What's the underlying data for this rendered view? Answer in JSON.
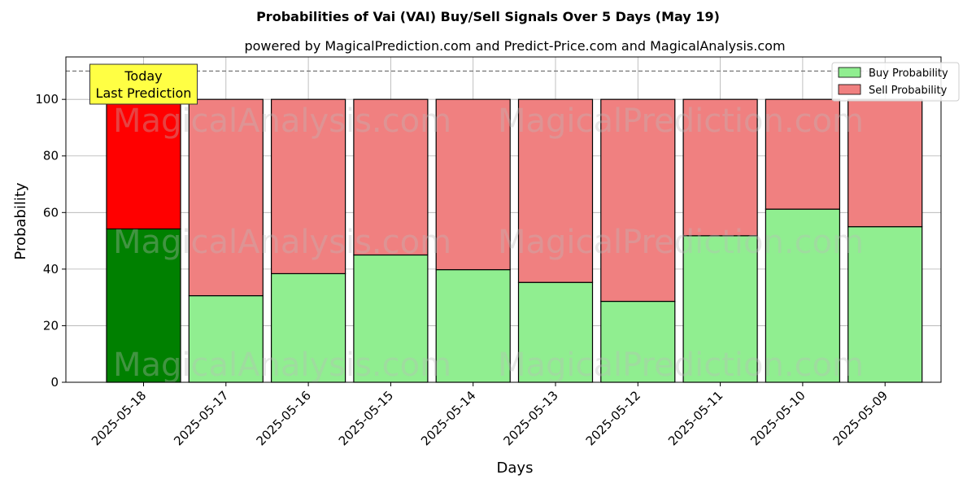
{
  "chart_data": {
    "type": "bar",
    "stacked": true,
    "title": "Probabilities of Vai (VAI) Buy/Sell Signals Over 5 Days (May 19)",
    "subtitle": "powered by MagicalPrediction.com and Predict-Price.com and MagicalAnalysis.com",
    "xlabel": "Days",
    "ylabel": "Probability",
    "ylim": [
      0,
      115
    ],
    "yticks": [
      0,
      20,
      40,
      60,
      80,
      100
    ],
    "reference_line": 110,
    "grid": true,
    "legend_position": "top-right",
    "categories": [
      "2025-05-18",
      "2025-05-17",
      "2025-05-16",
      "2025-05-15",
      "2025-05-14",
      "2025-05-13",
      "2025-05-12",
      "2025-05-11",
      "2025-05-10",
      "2025-05-09"
    ],
    "series": [
      {
        "name": "Buy Probability",
        "color": "#90ee90",
        "highlight_color": "#008000",
        "values": [
          54.2,
          30.6,
          38.4,
          45.0,
          39.8,
          35.3,
          28.6,
          51.8,
          61.2,
          55.0
        ]
      },
      {
        "name": "Sell Probability",
        "color": "#f08080",
        "highlight_color": "#ff0000",
        "values": [
          45.8,
          69.4,
          61.6,
          55.0,
          60.2,
          64.7,
          71.4,
          48.2,
          38.8,
          45.0
        ]
      }
    ],
    "annotation": {
      "lines": [
        "Today",
        "Last Prediction"
      ],
      "background": "#ffff44"
    },
    "watermarks": [
      "MagicalAnalysis.com",
      "MagicalPrediction.com"
    ]
  }
}
